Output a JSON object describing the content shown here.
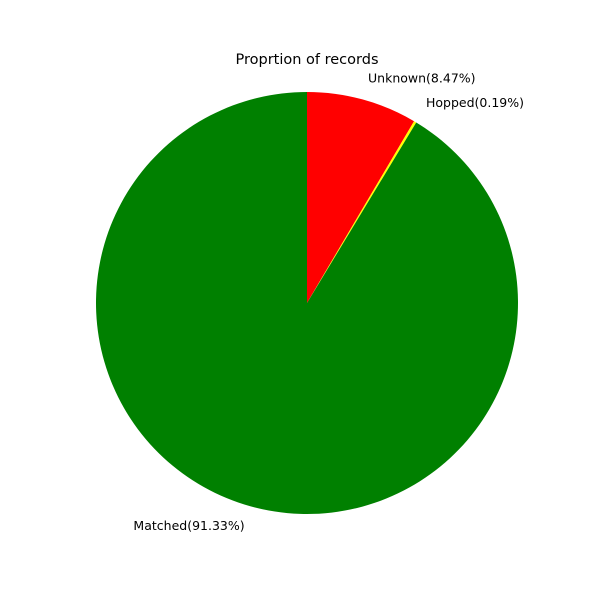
{
  "chart_data": {
    "type": "pie",
    "title": "Proprtion of records",
    "start_angle_deg": 90,
    "direction": "clockwise",
    "slices": [
      {
        "name": "Unknown",
        "label": "Unknown(8.47%)",
        "value": 8.47,
        "color": "#ff0000"
      },
      {
        "name": "Hopped",
        "label": "Hopped(0.19%)",
        "value": 0.19,
        "color": "#ffff00"
      },
      {
        "name": "Matched",
        "label": "Matched(91.33%)",
        "value": 91.33,
        "color": "#008000"
      }
    ]
  }
}
